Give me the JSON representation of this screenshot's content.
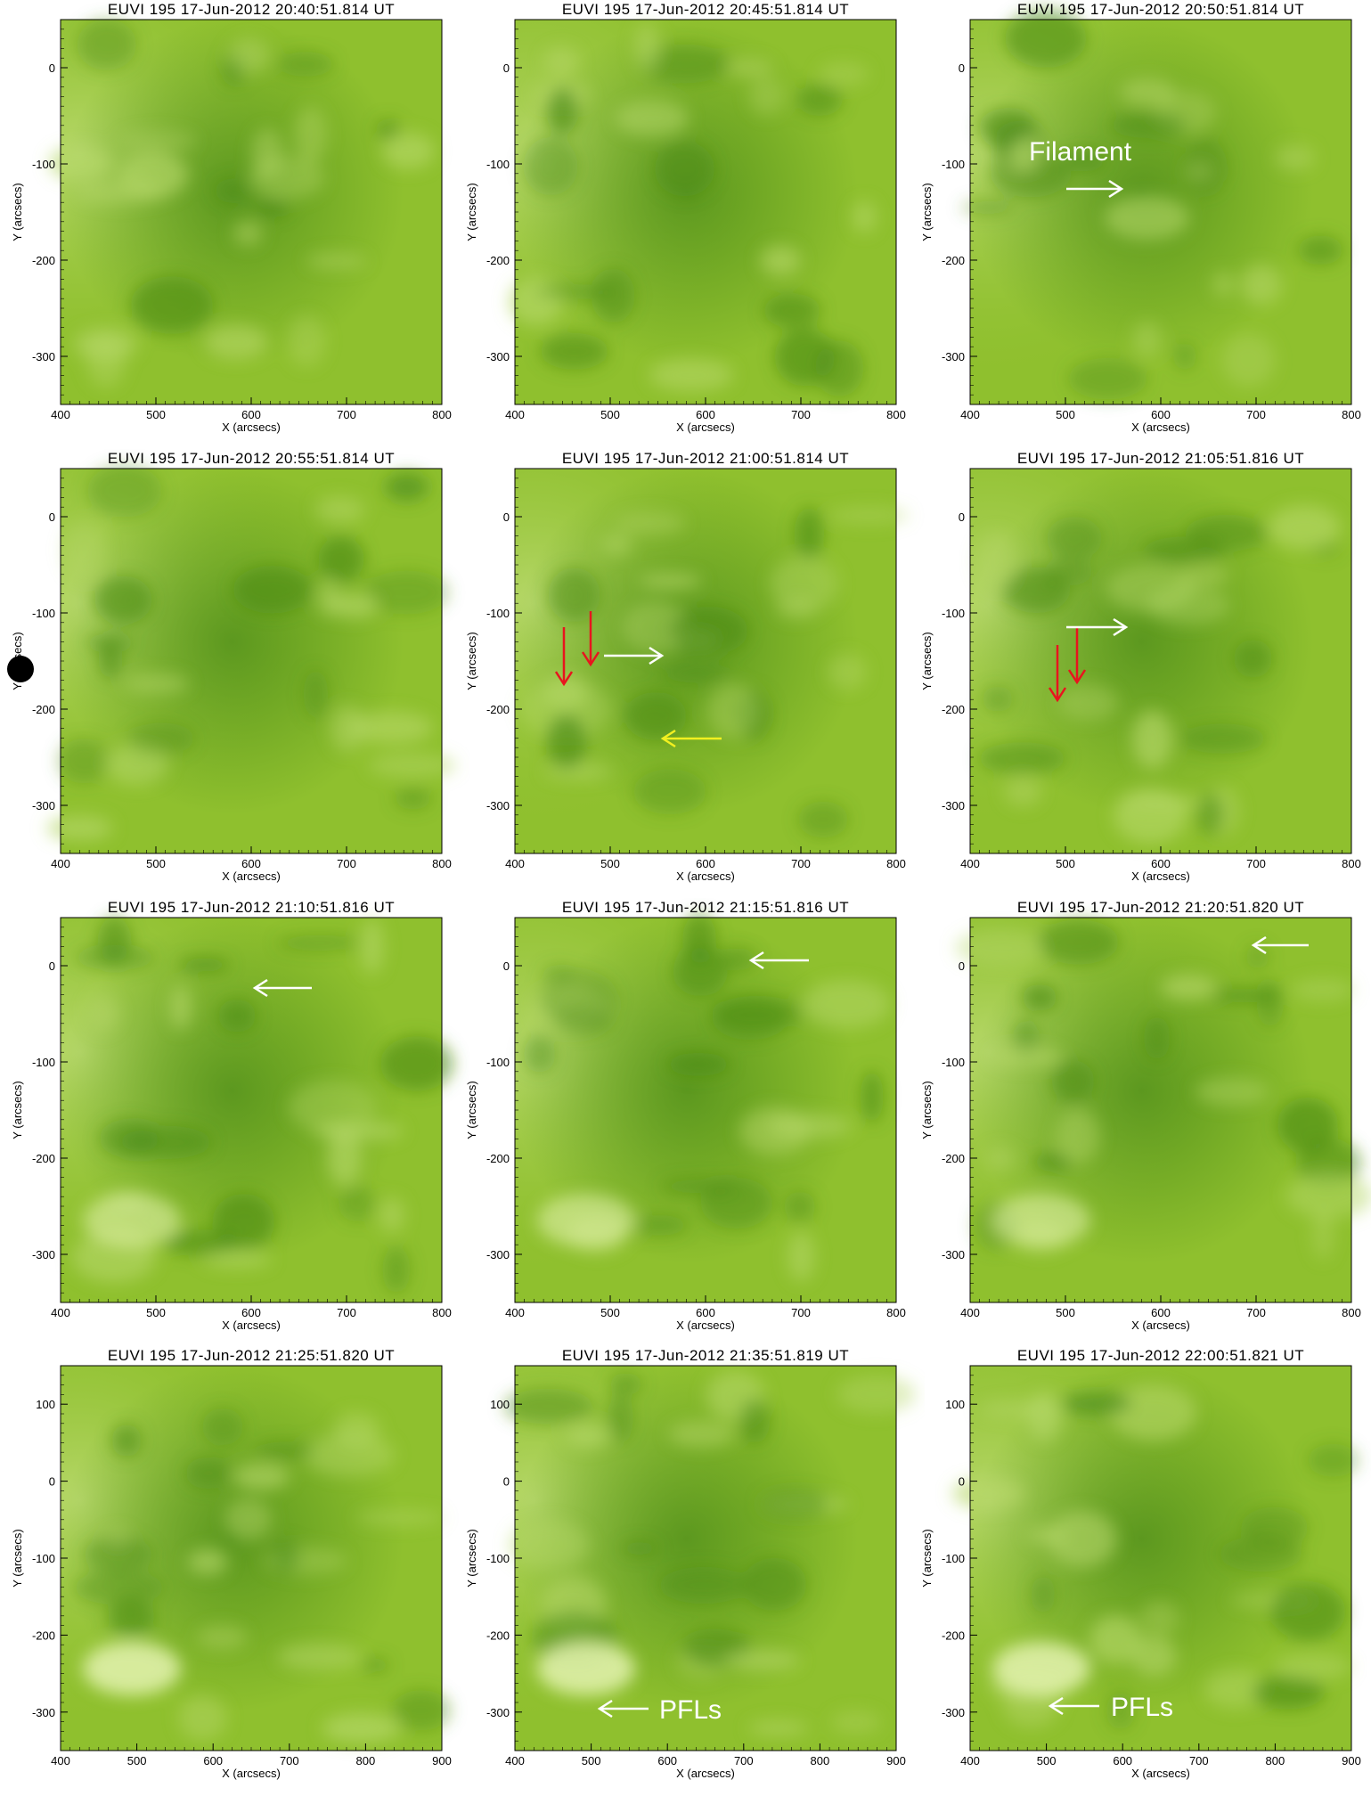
{
  "figure": {
    "panels": [
      {
        "id": "p1",
        "title": "EUVI 195 17-Jun-2012 20:40:51.814 UT",
        "xlabel": "X (arcsecs)",
        "ylabel": "Y (arcsecs)",
        "xticks": [
          400,
          500,
          600,
          700,
          800
        ],
        "yticks": [
          0,
          -100,
          -200,
          -300
        ],
        "xrange": [
          400,
          800
        ],
        "yrange": [
          -350,
          50
        ],
        "annotations": []
      },
      {
        "id": "p2",
        "title": "EUVI 195 17-Jun-2012 20:45:51.814 UT",
        "xlabel": "X (arcsecs)",
        "ylabel": "Y (arcsecs)",
        "xticks": [
          400,
          500,
          600,
          700,
          800
        ],
        "yticks": [
          0,
          -100,
          -200,
          -300
        ],
        "xrange": [
          400,
          800
        ],
        "yrange": [
          -350,
          50
        ],
        "annotations": []
      },
      {
        "id": "p3",
        "title": "EUVI 195 17-Jun-2012 20:50:51.814 UT",
        "xlabel": "X (arcsecs)",
        "ylabel": "Y (arcsecs)",
        "xticks": [
          400,
          500,
          600,
          700,
          800
        ],
        "yticks": [
          0,
          -100,
          -200,
          -300
        ],
        "xrange": [
          400,
          800
        ],
        "yrange": [
          -350,
          50
        ],
        "annotations": [
          {
            "text": "Filament",
            "arrow": "white-right"
          }
        ]
      },
      {
        "id": "p4",
        "title": "EUVI 195 17-Jun-2012 20:55:51.814 UT",
        "xlabel": "X (arcsecs)",
        "ylabel": "Y (arcsecs)",
        "xticks": [
          400,
          500,
          600,
          700,
          800
        ],
        "yticks": [
          0,
          -100,
          -200,
          -300
        ],
        "xrange": [
          400,
          800
        ],
        "yrange": [
          -350,
          50
        ],
        "annotations": []
      },
      {
        "id": "p5",
        "title": "EUVI 195 17-Jun-2012 21:00:51.814 UT",
        "xlabel": "X (arcsecs)",
        "ylabel": "Y (arcsecs)",
        "xticks": [
          400,
          500,
          600,
          700,
          800
        ],
        "yticks": [
          0,
          -100,
          -200,
          -300
        ],
        "xrange": [
          400,
          800
        ],
        "yrange": [
          -350,
          50
        ],
        "annotations": [
          {
            "arrow": "red-down"
          },
          {
            "arrow": "red-down"
          },
          {
            "arrow": "white-right"
          },
          {
            "arrow": "yellow-left"
          }
        ]
      },
      {
        "id": "p6",
        "title": "EUVI 195 17-Jun-2012 21:05:51.816 UT",
        "xlabel": "X (arcsecs)",
        "ylabel": "Y (arcsecs)",
        "xticks": [
          400,
          500,
          600,
          700,
          800
        ],
        "yticks": [
          0,
          -100,
          -200,
          -300
        ],
        "xrange": [
          400,
          800
        ],
        "yrange": [
          -350,
          50
        ],
        "annotations": [
          {
            "arrow": "red-down"
          },
          {
            "arrow": "red-down"
          },
          {
            "arrow": "white-right"
          }
        ]
      },
      {
        "id": "p7",
        "title": "EUVI 195 17-Jun-2012 21:10:51.816 UT",
        "xlabel": "X (arcsecs)",
        "ylabel": "Y (arcsecs)",
        "xticks": [
          400,
          500,
          600,
          700,
          800
        ],
        "yticks": [
          0,
          -100,
          -200,
          -300
        ],
        "xrange": [
          400,
          800
        ],
        "yrange": [
          -350,
          50
        ],
        "annotations": [
          {
            "arrow": "white-left"
          }
        ]
      },
      {
        "id": "p8",
        "title": "EUVI 195 17-Jun-2012 21:15:51.816 UT",
        "xlabel": "X (arcsecs)",
        "ylabel": "Y (arcsecs)",
        "xticks": [
          400,
          500,
          600,
          700,
          800
        ],
        "yticks": [
          0,
          -100,
          -200,
          -300
        ],
        "xrange": [
          400,
          800
        ],
        "yrange": [
          -350,
          50
        ],
        "annotations": [
          {
            "arrow": "white-left"
          }
        ]
      },
      {
        "id": "p9",
        "title": "EUVI 195 17-Jun-2012 21:20:51.820 UT",
        "xlabel": "X (arcsecs)",
        "ylabel": "Y (arcsecs)",
        "xticks": [
          400,
          500,
          600,
          700,
          800
        ],
        "yticks": [
          0,
          -100,
          -200,
          -300
        ],
        "xrange": [
          400,
          800
        ],
        "yrange": [
          -350,
          50
        ],
        "annotations": [
          {
            "arrow": "white-left"
          }
        ]
      },
      {
        "id": "p10",
        "title": "EUVI 195 17-Jun-2012 21:25:51.820 UT",
        "xlabel": "X (arcsecs)",
        "ylabel": "Y (arcsecs)",
        "xticks": [
          400,
          500,
          600,
          700,
          800,
          900
        ],
        "yticks": [
          100,
          0,
          -100,
          -200,
          -300
        ],
        "xrange": [
          400,
          900
        ],
        "yrange": [
          -350,
          150
        ],
        "annotations": []
      },
      {
        "id": "p11",
        "title": "EUVI 195 17-Jun-2012 21:35:51.819 UT",
        "xlabel": "X (arcsecs)",
        "ylabel": "Y (arcsecs)",
        "xticks": [
          400,
          500,
          600,
          700,
          800,
          900
        ],
        "yticks": [
          100,
          0,
          -100,
          -200,
          -300
        ],
        "xrange": [
          400,
          900
        ],
        "yrange": [
          -350,
          150
        ],
        "annotations": [
          {
            "text": "PFLs",
            "arrow": "white-left"
          }
        ]
      },
      {
        "id": "p12",
        "title": "EUVI 195 17-Jun-2012 22:00:51.821 UT",
        "xlabel": "X (arcsecs)",
        "ylabel": "Y (arcsecs)",
        "xticks": [
          400,
          500,
          600,
          700,
          800,
          900
        ],
        "yticks": [
          100,
          0,
          -100,
          -200,
          -300
        ],
        "xrange": [
          400,
          900
        ],
        "yrange": [
          -350,
          150
        ],
        "annotations": [
          {
            "text": "PFLs",
            "arrow": "white-left"
          }
        ]
      }
    ],
    "colors": {
      "image_light": "#b7d86a",
      "image_mid": "#8fc02e",
      "image_dark": "#4a8a18",
      "arrow_white": "#ffffff",
      "arrow_red": "#e8141e",
      "arrow_yellow": "#f2f020"
    }
  }
}
